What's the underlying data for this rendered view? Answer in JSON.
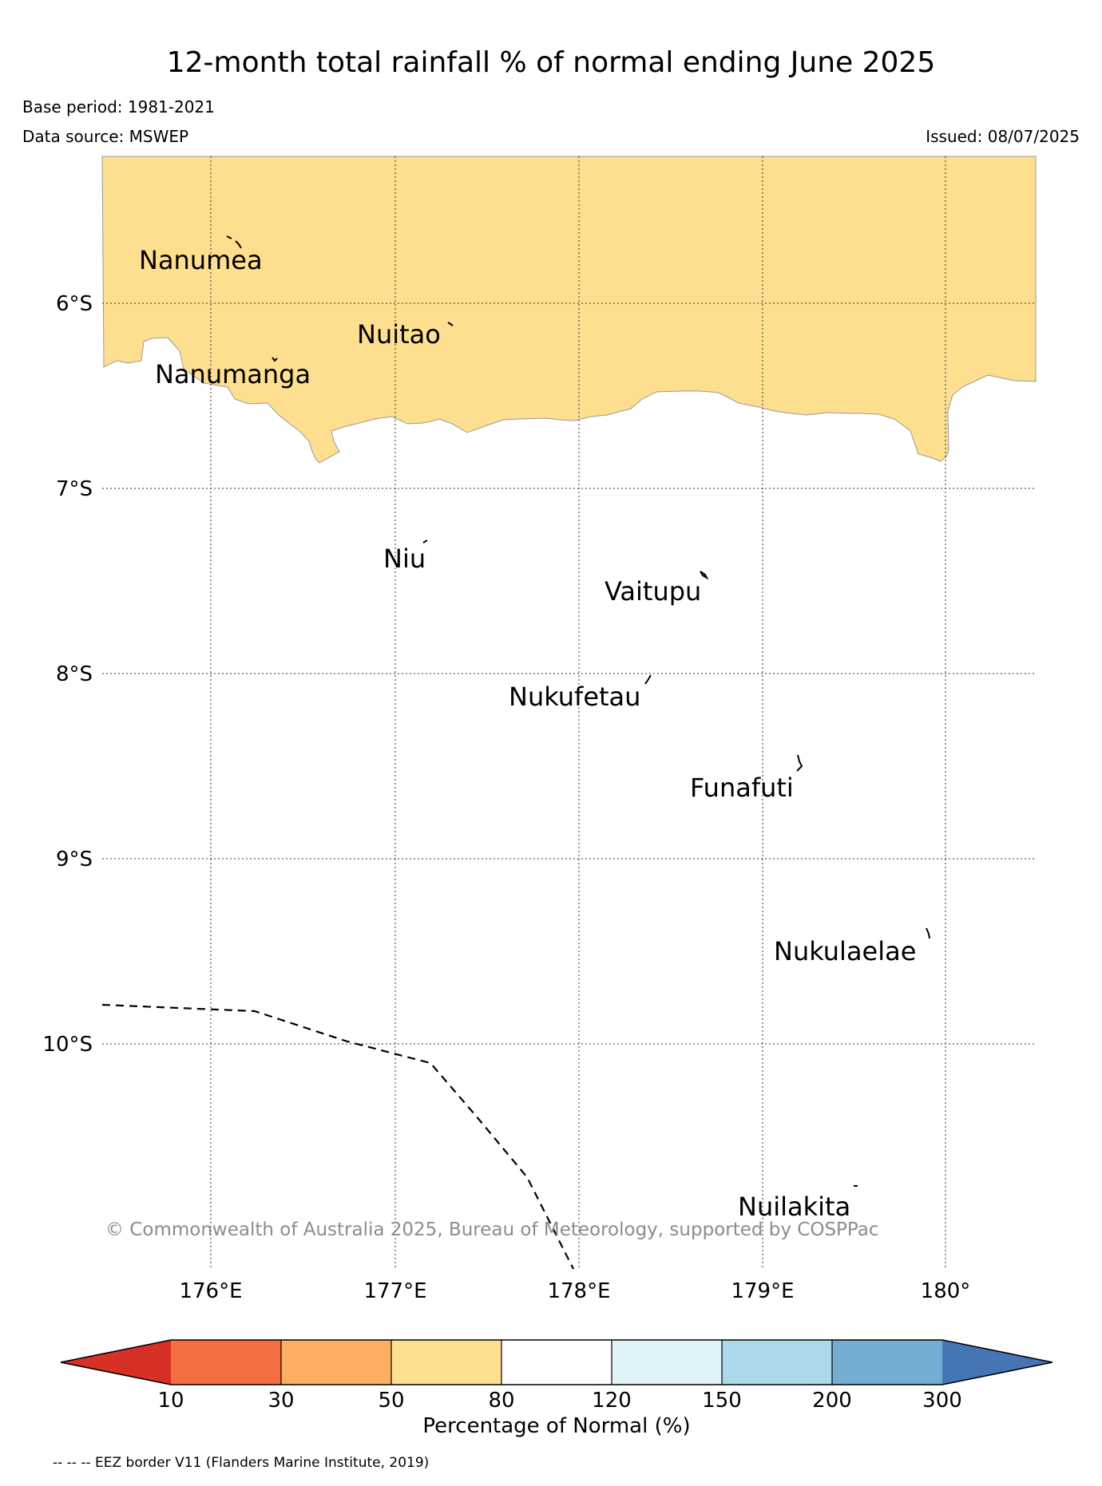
{
  "header": {
    "title": "12-month total rainfall % of normal ending June 2025",
    "base_period": "Base period: 1981-2021",
    "data_source": "Data source: MSWEP",
    "issued": "Issued: 08/07/2025"
  },
  "map": {
    "lat_labels": [
      "6°S",
      "7°S",
      "8°S",
      "9°S",
      "10°S"
    ],
    "lon_labels": [
      "176°E",
      "177°E",
      "178°E",
      "179°E",
      "180°"
    ],
    "places": [
      {
        "key": "nanumea",
        "name": "Nanumea"
      },
      {
        "key": "nuitao",
        "name": "Nuitao"
      },
      {
        "key": "nanumanga",
        "name": "Nanumanga"
      },
      {
        "key": "niu",
        "name": "Niu"
      },
      {
        "key": "vaitupu",
        "name": "Vaitupu"
      },
      {
        "key": "nukufetau",
        "name": "Nukufetau"
      },
      {
        "key": "funafuti",
        "name": "Funafuti"
      },
      {
        "key": "nukulaelae",
        "name": "Nukulaelae"
      },
      {
        "key": "nuilakita",
        "name": "Nuilakita"
      }
    ],
    "copyright": "© Commonwealth of Australia 2025, Bureau of Meteorology, supported by COSPPac",
    "shaded_category_color": "#fddf8f"
  },
  "colorbar": {
    "ticks": [
      "10",
      "30",
      "50",
      "80",
      "120",
      "150",
      "200",
      "300"
    ],
    "colors": [
      "#d73027",
      "#f46d43",
      "#fdae61",
      "#fee090",
      "#ffffff",
      "#e0f3f8",
      "#abd9e9",
      "#74add1",
      "#4575b4"
    ],
    "label": "Percentage of Normal (%)"
  },
  "footer": {
    "eez_note": "-- -- -- EEZ border V11 (Flanders Marine Institute, 2019)"
  }
}
